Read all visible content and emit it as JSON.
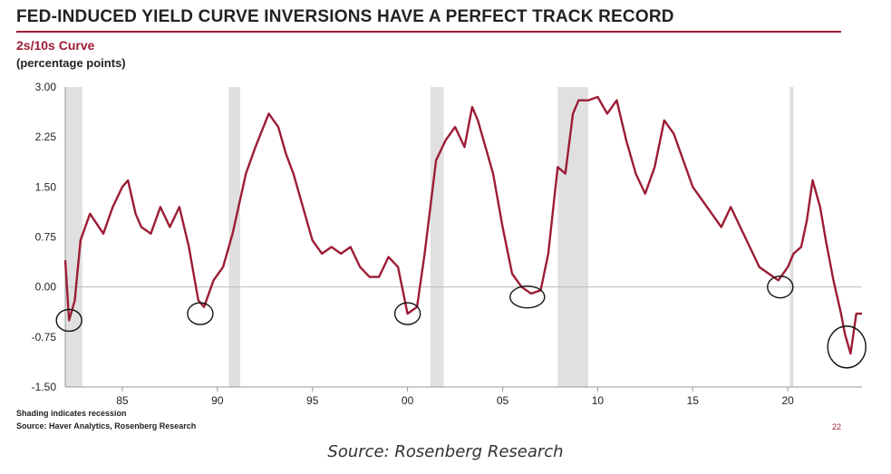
{
  "header": {
    "title": "FED-INDUCED YIELD CURVE INVERSIONS HAVE A PERFECT TRACK RECORD",
    "subtitle": "2s/10s Curve",
    "unit": "(percentage points)"
  },
  "footer": {
    "note": "Shading indicates recession",
    "source_line": "Source: Haver Analytics, Rosenberg Research",
    "page_number": "22",
    "caption": "Source: Rosenberg Research"
  },
  "colors": {
    "line": "#9c1c35",
    "recession": "#e0e0e0",
    "zero": "#bbbbbb",
    "circle": "#111111"
  },
  "chart_data": {
    "type": "line",
    "x_range": [
      1982.0,
      2023.9
    ],
    "ylim": [
      -1.5,
      3.0
    ],
    "y_ticks": [
      3.0,
      2.25,
      1.5,
      0.75,
      0.0,
      -0.75,
      -1.5
    ],
    "y_tick_labels": [
      "3.00",
      "2.25",
      "1.50",
      "0.75",
      "0.00",
      "-0.75",
      "-1.50"
    ],
    "x_ticks": [
      1985,
      1990,
      1995,
      2000,
      2005,
      2010,
      2015,
      2020
    ],
    "x_tick_labels": [
      "85",
      "90",
      "95",
      "00",
      "05",
      "10",
      "15",
      "20"
    ],
    "recessions": [
      [
        1982.0,
        1982.9
      ],
      [
        1990.6,
        1991.2
      ],
      [
        2001.2,
        2001.9
      ],
      [
        2007.9,
        2009.5
      ],
      [
        2020.1,
        2020.3
      ]
    ],
    "inversion_circles": [
      [
        1982.2,
        -0.5
      ],
      [
        1989.1,
        -0.4
      ],
      [
        2000.0,
        -0.4
      ],
      [
        2006.3,
        -0.15
      ],
      [
        2019.6,
        0.0
      ],
      [
        2023.1,
        -0.9
      ]
    ],
    "series": [
      {
        "x": [
          1982.0,
          1982.2,
          1982.5,
          1982.8,
          1983.3,
          1984.0,
          1984.5,
          1985.0,
          1985.3,
          1985.7,
          1986.0,
          1986.5,
          1987.0,
          1987.5,
          1988.0,
          1988.5,
          1989.0,
          1989.3,
          1989.8,
          1990.3,
          1990.8,
          1991.5,
          1992.0,
          1992.7,
          1993.2,
          1993.6,
          1994.0,
          1994.5,
          1995.0,
          1995.5,
          1996.0,
          1996.5,
          1997.0,
          1997.5,
          1998.0,
          1998.5,
          1999.0,
          1999.5,
          2000.0,
          2000.5,
          2000.9,
          2001.5,
          2002.0,
          2002.5,
          2003.0,
          2003.4,
          2003.7,
          2004.0,
          2004.5,
          2005.0,
          2005.5,
          2006.0,
          2006.5,
          2007.0,
          2007.4,
          2007.9,
          2008.3,
          2008.7,
          2009.0,
          2009.5,
          2010.0,
          2010.5,
          2011.0,
          2011.5,
          2012.0,
          2012.5,
          2013.0,
          2013.5,
          2014.0,
          2014.5,
          2015.0,
          2015.5,
          2016.0,
          2016.5,
          2017.0,
          2017.5,
          2018.0,
          2018.5,
          2019.0,
          2019.5,
          2020.0,
          2020.3,
          2020.7,
          2021.0,
          2021.3,
          2021.7,
          2022.0,
          2022.4,
          2022.8,
          2023.0,
          2023.3,
          2023.6,
          2023.9
        ],
        "y": [
          0.4,
          -0.5,
          -0.2,
          0.7,
          1.1,
          0.8,
          1.2,
          1.5,
          1.6,
          1.1,
          0.9,
          0.8,
          1.2,
          0.9,
          1.2,
          0.6,
          -0.2,
          -0.3,
          0.1,
          0.3,
          0.8,
          1.7,
          2.1,
          2.6,
          2.4,
          2.0,
          1.7,
          1.2,
          0.7,
          0.5,
          0.6,
          0.5,
          0.6,
          0.3,
          0.15,
          0.15,
          0.45,
          0.3,
          -0.4,
          -0.3,
          0.5,
          1.9,
          2.2,
          2.4,
          2.1,
          2.7,
          2.5,
          2.2,
          1.7,
          0.9,
          0.2,
          0.0,
          -0.1,
          -0.05,
          0.5,
          1.8,
          1.7,
          2.6,
          2.8,
          2.8,
          2.85,
          2.6,
          2.8,
          2.2,
          1.7,
          1.4,
          1.8,
          2.5,
          2.3,
          1.9,
          1.5,
          1.3,
          1.1,
          0.9,
          1.2,
          0.9,
          0.6,
          0.3,
          0.2,
          0.1,
          0.3,
          0.5,
          0.6,
          1.0,
          1.6,
          1.2,
          0.7,
          0.1,
          -0.4,
          -0.7,
          -1.0,
          -0.4,
          -0.4
        ]
      }
    ]
  }
}
